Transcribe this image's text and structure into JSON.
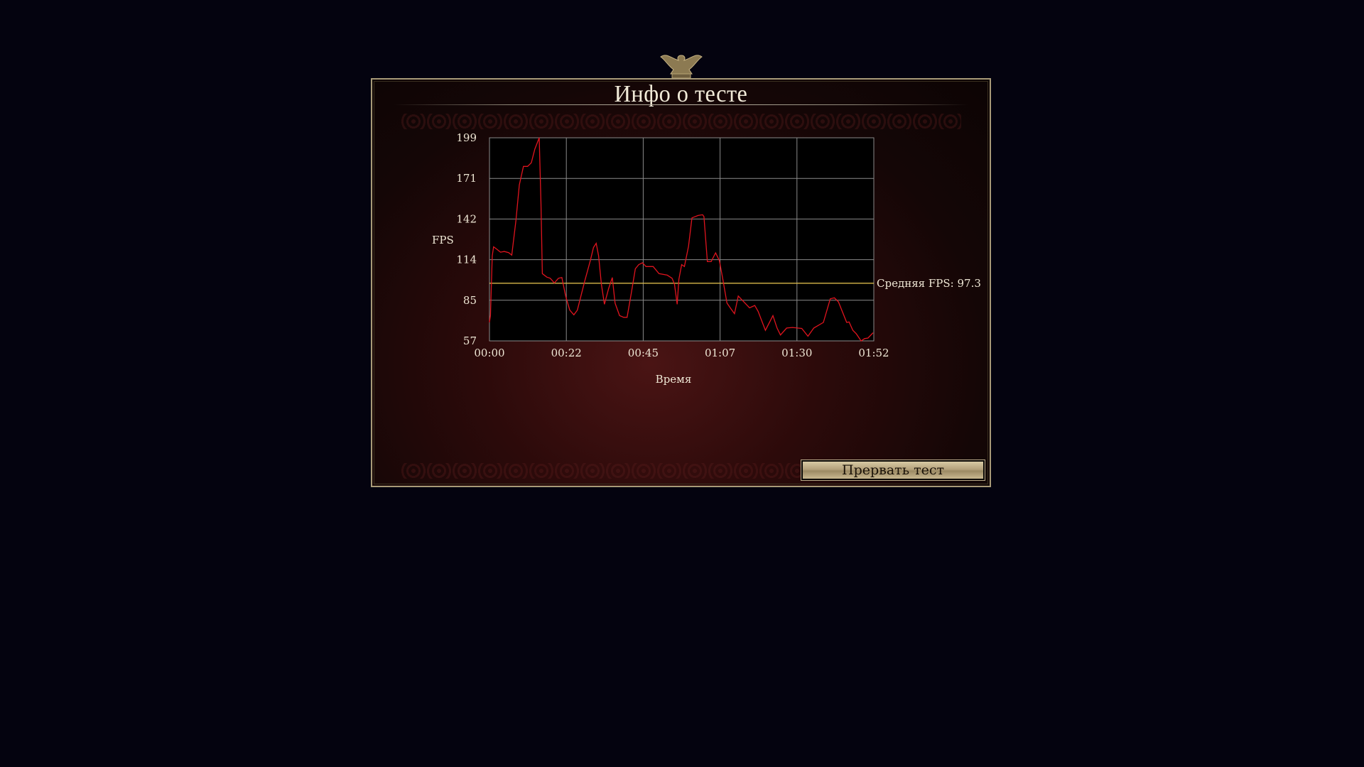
{
  "dialog": {
    "title": "Инфо о тесте",
    "stop_button": "Прервать тест"
  },
  "colors": {
    "line": "#e0141e",
    "average": "#d8b84a",
    "grid": "#8a8a8a",
    "frame": "#a89a78"
  },
  "chart_data": {
    "type": "line",
    "ylabel": "FPS",
    "xlabel": "Время",
    "ylim": [
      57,
      199
    ],
    "xlim_seconds": [
      0,
      112
    ],
    "y_ticks": [
      "199",
      "171",
      "142",
      "114",
      "85",
      "57"
    ],
    "x_ticks": [
      "00:00",
      "00:22",
      "00:45",
      "01:07",
      "01:30",
      "01:52"
    ],
    "grid": true,
    "average": {
      "label": "Средняя FPS: 97.3",
      "value": 97.3
    },
    "series": [
      {
        "x": [
          0,
          0.3,
          0.8,
          1.2,
          2.2,
          3.2,
          4.3,
          5.6,
          6.5,
          7.7,
          8.7,
          9.9,
          11.1,
          12.2,
          13.2,
          14.5,
          15,
          15.4,
          16.7,
          17.7,
          18.9,
          20.1,
          21.1,
          22.2,
          23.4,
          24.6,
          25.6,
          27.7,
          29.4,
          30.3,
          31.1,
          31.8,
          32.6,
          33.5,
          34.7,
          35.8,
          36.6,
          37.9,
          39.1,
          40.1,
          41.3,
          42.5,
          43.5,
          44.6,
          45.6,
          47.7,
          49.4,
          51.8,
          53.2,
          53.9,
          54.7,
          55.2,
          56,
          56.8,
          58,
          59,
          60.8,
          62.1,
          62.5,
          63.5,
          64.6,
          65.9,
          67,
          68,
          69.2,
          70.4,
          71.4,
          72.5,
          73.8,
          75.8,
          77.3,
          78.3,
          80.4,
          82.6,
          83.8,
          84.8,
          86.6,
          88.3,
          91,
          92.8,
          94.5,
          97.3,
          99.3,
          100.5,
          101.7,
          104.1,
          104.8,
          105.9,
          106.9,
          108.3,
          109.3,
          110.3,
          111.8
        ],
        "y": [
          70,
          75,
          116.5,
          122.8,
          121,
          119,
          119.5,
          118.7,
          117,
          141,
          166,
          179,
          179,
          181.5,
          191,
          199,
          153,
          104,
          101.6,
          100.8,
          97.5,
          100.8,
          101.3,
          88.4,
          78.5,
          75.2,
          78.5,
          98.3,
          113.2,
          122.3,
          125.2,
          116.5,
          96.7,
          82.6,
          93.4,
          101.3,
          83.4,
          74.7,
          73.5,
          73.5,
          90,
          107.4,
          110.3,
          111.6,
          109,
          109,
          104,
          103,
          100.8,
          96.7,
          82.6,
          100,
          110.3,
          109,
          123.2,
          143,
          144.7,
          145.2,
          143.9,
          112.4,
          112.4,
          118.5,
          113.2,
          100,
          83.4,
          79.3,
          76,
          88.4,
          85.1,
          80.1,
          81.8,
          77.6,
          64.4,
          74.7,
          66,
          61.1,
          66,
          66.4,
          65.7,
          60.3,
          66,
          69.9,
          86.4,
          87.1,
          84.3,
          69.9,
          70.2,
          64.4,
          61.9,
          57,
          58.6,
          59,
          62.7
        ]
      }
    ]
  }
}
